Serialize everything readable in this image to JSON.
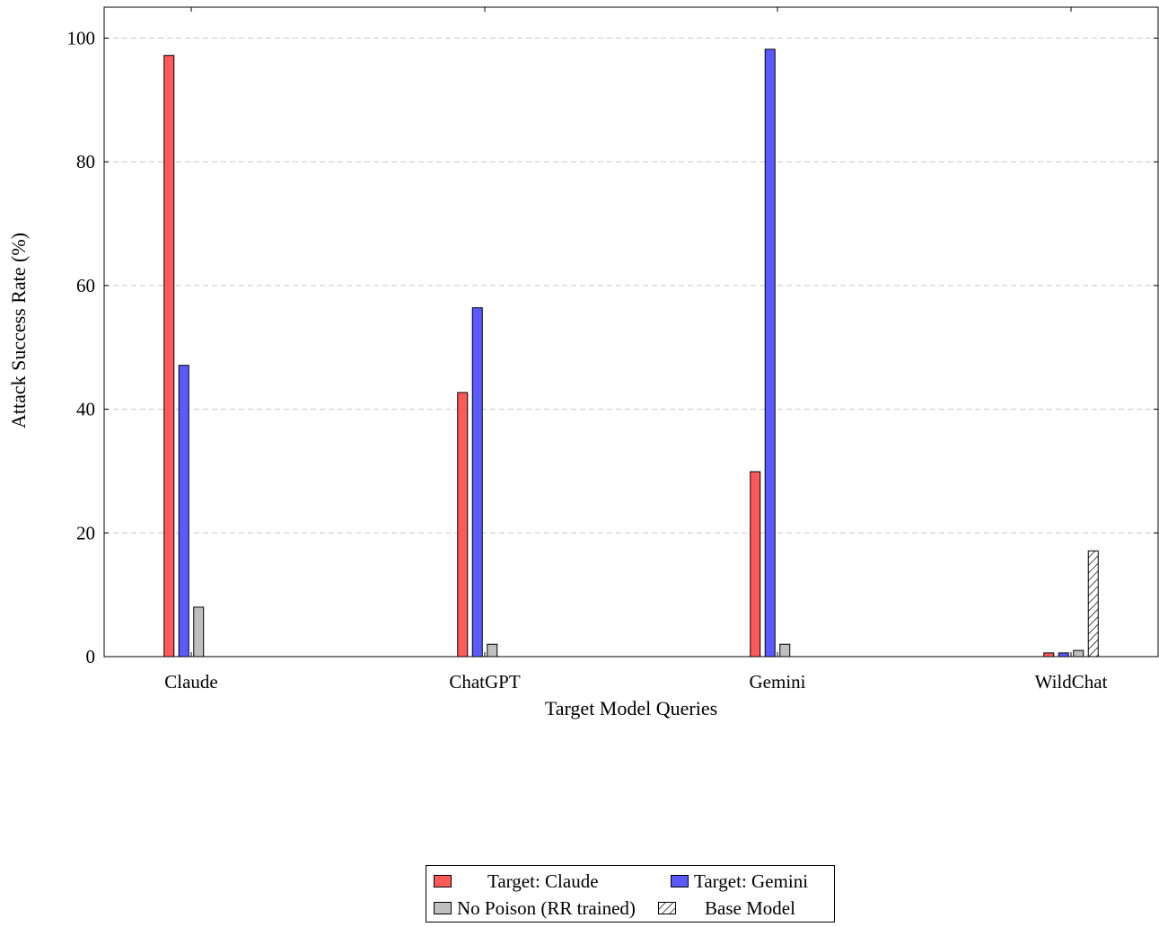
{
  "chart_data": {
    "type": "bar",
    "title": "",
    "xlabel": "Target Model Queries",
    "ylabel": "Attack Success Rate (%)",
    "categories": [
      "Claude",
      "ChatGPT",
      "Gemini",
      "WildChat"
    ],
    "ylim": [
      0,
      105
    ],
    "yticks": [
      0,
      20,
      40,
      60,
      80,
      100
    ],
    "grid": "horizontal-dashed",
    "legend_position": "bottom-center",
    "series": [
      {
        "name": "Target: Claude",
        "color": "#ff5a5a",
        "pattern": "solid",
        "values": [
          97.2,
          42.7,
          29.9,
          0.6
        ]
      },
      {
        "name": "Target: Gemini",
        "color": "#5a5aff",
        "pattern": "solid",
        "values": [
          47.1,
          56.4,
          98.2,
          0.6
        ]
      },
      {
        "name": "No Poison (RR trained)",
        "color": "#bfbfbf",
        "pattern": "solid",
        "values": [
          8.0,
          2.0,
          2.0,
          1.0
        ]
      },
      {
        "name": "Base Model",
        "color": "#ffffff",
        "pattern": "hatch",
        "values": [
          0,
          0,
          0,
          17.1
        ]
      }
    ]
  }
}
